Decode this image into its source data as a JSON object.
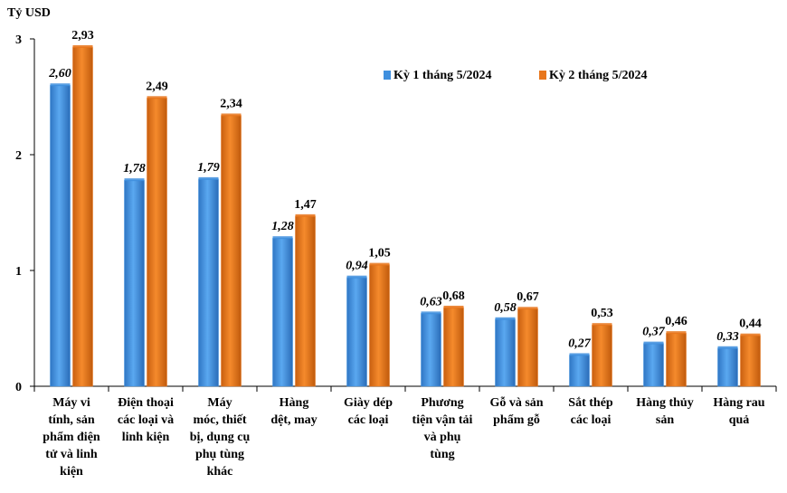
{
  "chart_data": {
    "type": "bar",
    "ylabel": "Tỷ USD",
    "ylim": [
      0,
      3
    ],
    "yticks": [
      "0",
      "1",
      "2",
      "3"
    ],
    "grid": false,
    "legend_position": "top-right",
    "categories": [
      [
        "Máy vi",
        "tính, sản",
        "phẩm điện",
        "tử và linh",
        "kiện"
      ],
      [
        "Điện thoại",
        "các loại và",
        "linh kiện"
      ],
      [
        "Máy",
        "móc, thiết",
        "bị, dụng cụ",
        "phụ tùng",
        "khác"
      ],
      [
        "Hàng",
        "dệt, may"
      ],
      [
        "Giày dép",
        "các loại"
      ],
      [
        "Phương",
        "tiện vận tải",
        "và phụ",
        "tùng"
      ],
      [
        "Gỗ và sản",
        "phẩm gỗ"
      ],
      [
        "Sắt thép",
        "các loại"
      ],
      [
        "Hàng thủy",
        "sản"
      ],
      [
        "Hàng rau",
        "quả"
      ]
    ],
    "series": [
      {
        "name": "Kỳ 1 tháng 5/2024",
        "color": "#3f8fde",
        "values": [
          2.6,
          1.78,
          1.79,
          1.28,
          0.94,
          0.63,
          0.58,
          0.27,
          0.37,
          0.33
        ],
        "labels": [
          "2,60",
          "1,78",
          "1,79",
          "1,28",
          "0,94",
          "0,63",
          "0,58",
          "0,27",
          "0,37",
          "0,33"
        ],
        "label_italic": true
      },
      {
        "name": "Kỳ 2 tháng 5/2024",
        "color": "#e8761c",
        "values": [
          2.93,
          2.49,
          2.34,
          1.47,
          1.05,
          0.68,
          0.67,
          0.53,
          0.46,
          0.44
        ],
        "labels": [
          "2,93",
          "2,49",
          "2,34",
          "1,47",
          "1,05",
          "0,68",
          "0,67",
          "0,53",
          "0,46",
          "0,44"
        ],
        "label_italic": false
      }
    ]
  }
}
